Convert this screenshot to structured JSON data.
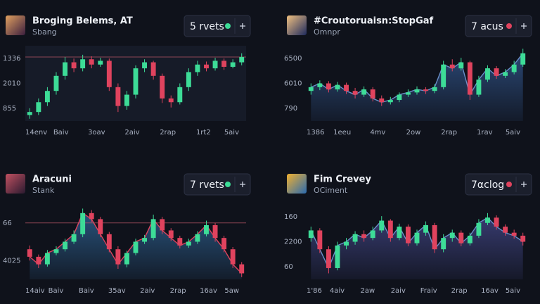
{
  "chart_data": [
    {
      "type": "candlestick",
      "title": "Broging Belems, AT",
      "subtitle": "Sbang",
      "button": "5 rvets",
      "x_labels": [
        "14env",
        "Baiv",
        "3oav",
        "2aiv",
        "2rap",
        "1rt2",
        "5aiv"
      ],
      "y_labels": [
        "1336",
        "2010",
        "855"
      ],
      "ylim": [
        0,
        100
      ],
      "ref_line": 85,
      "area": false,
      "up_color": "#3ddc97",
      "down_color": "#e0435e",
      "area_color": "#2b4a78",
      "open": [
        8,
        12,
        25,
        40,
        60,
        78,
        70,
        82,
        75,
        80,
        45,
        20,
        35,
        70,
        78,
        60,
        30,
        25,
        45,
        65,
        75,
        70,
        80,
        72,
        78
      ],
      "high": [
        17,
        30,
        45,
        65,
        85,
        83,
        88,
        86,
        84,
        83,
        50,
        40,
        74,
        82,
        80,
        63,
        34,
        50,
        70,
        80,
        79,
        84,
        83,
        82,
        90
      ],
      "low": [
        3,
        8,
        20,
        35,
        55,
        65,
        66,
        70,
        72,
        40,
        12,
        15,
        30,
        65,
        55,
        24,
        18,
        22,
        40,
        60,
        66,
        67,
        68,
        70,
        74
      ],
      "close": [
        12,
        25,
        40,
        60,
        78,
        70,
        82,
        75,
        80,
        45,
        20,
        35,
        70,
        78,
        60,
        30,
        25,
        45,
        65,
        75,
        70,
        80,
        72,
        78,
        85
      ]
    },
    {
      "type": "candlestick",
      "title": "#Croutoruaisn:StopGaf",
      "subtitle": "Omnpr",
      "button": "7 acus",
      "x_labels": [
        "1386",
        "1eeu",
        "4mv",
        "2ow",
        "2rap",
        "1rav",
        "5aiv"
      ],
      "y_labels": [
        "6500",
        "6010",
        "790"
      ],
      "ylim": [
        0,
        100
      ],
      "area": true,
      "up_color": "#3ddc97",
      "down_color": "#e0435e",
      "area_color": "#2d4d7e",
      "open": [
        40,
        45,
        50,
        42,
        48,
        40,
        35,
        42,
        30,
        25,
        28,
        35,
        38,
        42,
        40,
        45,
        75,
        70,
        78,
        35,
        55,
        70,
        60,
        65,
        75
      ],
      "high": [
        50,
        54,
        53,
        52,
        51,
        44,
        46,
        45,
        34,
        32,
        38,
        42,
        46,
        45,
        49,
        80,
        82,
        84,
        80,
        60,
        74,
        73,
        69,
        80,
        96
      ],
      "low": [
        35,
        41,
        38,
        39,
        36,
        30,
        32,
        26,
        20,
        22,
        25,
        32,
        35,
        36,
        37,
        42,
        66,
        67,
        28,
        32,
        52,
        56,
        57,
        62,
        72
      ],
      "close": [
        45,
        50,
        42,
        48,
        40,
        35,
        42,
        30,
        25,
        28,
        35,
        38,
        42,
        40,
        45,
        75,
        70,
        78,
        35,
        55,
        70,
        60,
        65,
        75,
        90
      ]
    },
    {
      "type": "candlestick",
      "title": "Aracuni",
      "subtitle": "Stank",
      "button": "7 rvets",
      "x_labels": [
        "14aiv",
        "Baiv",
        "Baiv",
        "35av",
        "2aiv",
        "2rap",
        "16av",
        "5aw"
      ],
      "y_labels": [
        "66",
        "4025"
      ],
      "ylim": [
        0,
        100
      ],
      "ref_line": 75,
      "area": true,
      "up_color": "#3ddc97",
      "down_color": "#e0435e",
      "area_color": "#2b5a86",
      "open": [
        40,
        30,
        20,
        35,
        40,
        50,
        60,
        88,
        80,
        60,
        40,
        20,
        35,
        50,
        55,
        80,
        65,
        55,
        45,
        50,
        60,
        72,
        55,
        40,
        20
      ],
      "high": [
        45,
        33,
        39,
        44,
        54,
        65,
        94,
        92,
        83,
        63,
        44,
        38,
        54,
        59,
        86,
        83,
        68,
        58,
        54,
        64,
        78,
        75,
        58,
        43,
        23
      ],
      "low": [
        25,
        15,
        17,
        32,
        37,
        47,
        56,
        76,
        56,
        36,
        14,
        16,
        32,
        47,
        52,
        60,
        51,
        41,
        42,
        47,
        57,
        50,
        36,
        15,
        3
      ],
      "close": [
        30,
        20,
        35,
        40,
        50,
        60,
        88,
        80,
        60,
        40,
        20,
        35,
        50,
        55,
        80,
        65,
        55,
        45,
        50,
        60,
        72,
        55,
        40,
        20,
        8
      ]
    },
    {
      "type": "candlestick",
      "title": "Fim Crevey",
      "subtitle": "OCiment",
      "button": "7αclog",
      "x_labels": [
        "1'86",
        "4aiv",
        "2aw",
        "2aiv",
        "Fraiv",
        "2rap",
        "16av",
        "5aiv"
      ],
      "y_labels": [
        "160",
        "2200",
        "60"
      ],
      "ylim": [
        0,
        100
      ],
      "area": true,
      "up_color": "#3ddc97",
      "down_color": "#e0435e",
      "area_color": "#3b3f78",
      "open": [
        55,
        65,
        40,
        15,
        45,
        50,
        60,
        55,
        65,
        78,
        55,
        70,
        48,
        62,
        72,
        40,
        55,
        62,
        48,
        58,
        75,
        82,
        70,
        62,
        58
      ],
      "high": [
        70,
        68,
        44,
        50,
        55,
        64,
        65,
        70,
        84,
        80,
        74,
        73,
        66,
        77,
        75,
        60,
        66,
        65,
        62,
        80,
        88,
        85,
        73,
        66,
        62
      ],
      "low": [
        50,
        35,
        8,
        12,
        40,
        46,
        50,
        52,
        62,
        50,
        52,
        44,
        45,
        58,
        35,
        36,
        50,
        44,
        45,
        55,
        72,
        66,
        58,
        54,
        45
      ],
      "close": [
        65,
        40,
        15,
        45,
        50,
        60,
        55,
        65,
        78,
        55,
        70,
        48,
        62,
        72,
        40,
        55,
        62,
        48,
        58,
        75,
        82,
        70,
        62,
        58,
        50
      ]
    }
  ]
}
